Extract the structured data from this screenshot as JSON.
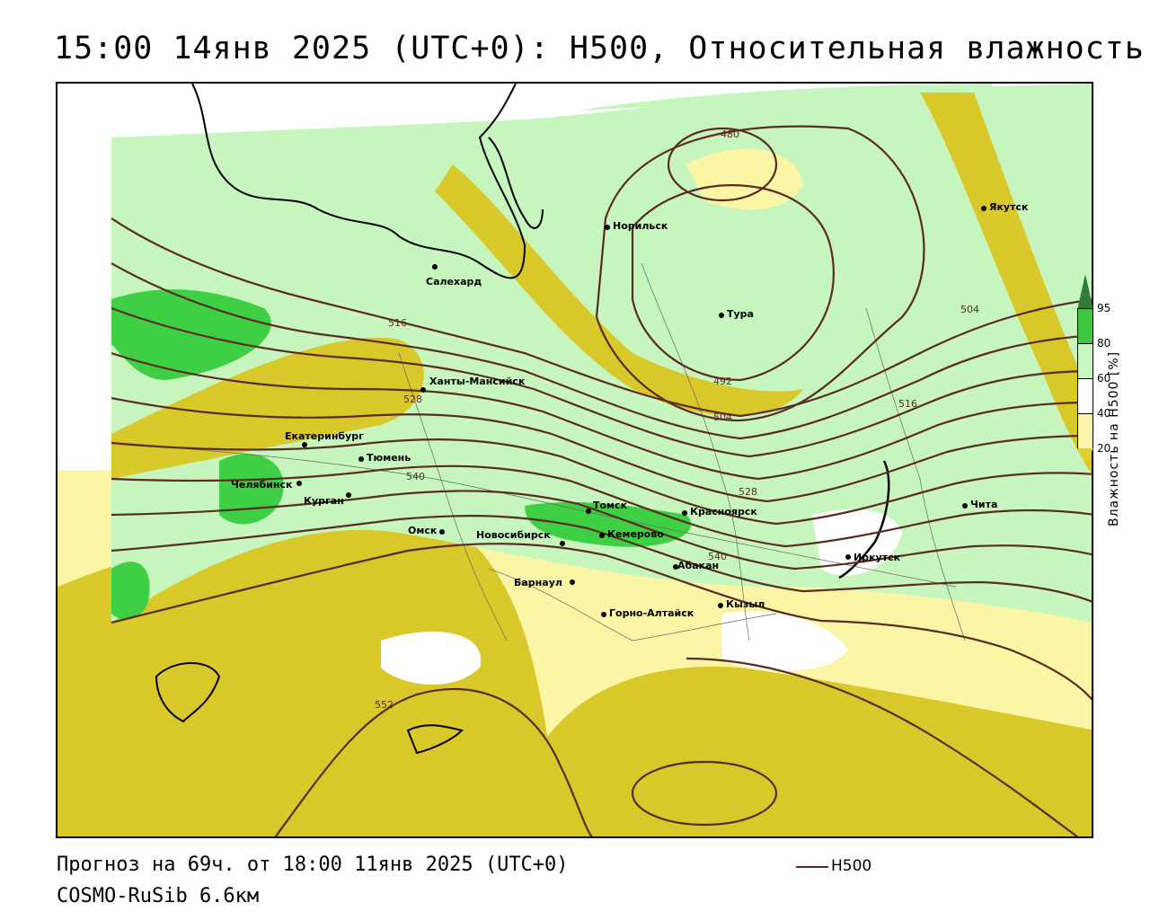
{
  "title": "15:00 14янв 2025 (UTC+0): H500, Относительная влажность",
  "footer": {
    "forecast": "Прогноз на 69ч. от 18:00 11янв 2025 (UTC+0)",
    "model": "COSMO-RuSib 6.6км",
    "legend_label": "H500"
  },
  "colorbar": {
    "title": "Влажность на H500 [%]",
    "ticks": [
      "95",
      "80",
      "60",
      "40",
      "20"
    ],
    "colors": {
      "c95": "#2e7d32",
      "c80": "#3ec43e",
      "c60": "#c8f5c0",
      "c40": "#ffffff",
      "c20": "#fbf3a8",
      "c0": "#e0cf30"
    }
  },
  "colors": {
    "contour": "#5a2b22",
    "dry": "#d9c82a",
    "dry_light": "#fbf5a6",
    "moist": "#c6f5be",
    "wet": "#3fcf44",
    "wettest": "#2e8b2e"
  },
  "cities": [
    {
      "name": "Норильск"
    },
    {
      "name": "Якутск"
    },
    {
      "name": "Салехард"
    },
    {
      "name": "Тура"
    },
    {
      "name": "Ханты-Мансийск"
    },
    {
      "name": "Екатеринбург"
    },
    {
      "name": "Тюмень"
    },
    {
      "name": "Челябинск"
    },
    {
      "name": "Курган"
    },
    {
      "name": "Омск"
    },
    {
      "name": "Новосибирск"
    },
    {
      "name": "Томск"
    },
    {
      "name": "Кемерово"
    },
    {
      "name": "Красноярск"
    },
    {
      "name": "Абакан"
    },
    {
      "name": "Барнаул"
    },
    {
      "name": "Горно-Алтайск"
    },
    {
      "name": "Кызыл"
    },
    {
      "name": "Иркутск"
    },
    {
      "name": "Чита"
    }
  ],
  "contour_labels": [
    "480",
    "504",
    "492",
    "504",
    "516",
    "516",
    "528",
    "528",
    "540",
    "540",
    "552"
  ]
}
